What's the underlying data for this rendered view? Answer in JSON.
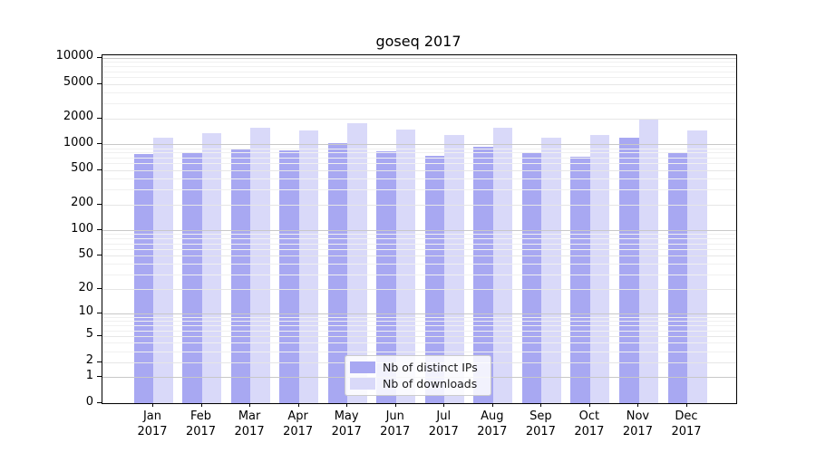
{
  "title": "goseq 2017",
  "chart_data": {
    "type": "bar",
    "title": "goseq 2017",
    "categories": [
      "Jan",
      "Feb",
      "Mar",
      "Apr",
      "May",
      "Jun",
      "Jul",
      "Aug",
      "Sep",
      "Oct",
      "Nov",
      "Dec"
    ],
    "x_sublabel": "2017",
    "series": [
      {
        "name": "Nb of distinct IPs",
        "color": "#a8a8f2",
        "values": [
          765,
          815,
          875,
          855,
          1020,
          825,
          735,
          935,
          785,
          720,
          1180,
          795
        ]
      },
      {
        "name": "Nb of downloads",
        "color": "#d9d9f9",
        "values": [
          1190,
          1360,
          1540,
          1460,
          1770,
          1470,
          1270,
          1550,
          1200,
          1270,
          1980,
          1430
        ]
      }
    ],
    "yticks": [
      0,
      1,
      2,
      5,
      10,
      20,
      50,
      100,
      200,
      500,
      1000,
      2000,
      5000,
      10000
    ],
    "scale": "log10(1+x)",
    "ylim": [
      0,
      10000
    ],
    "grid": true,
    "legend_position": "bottom-center",
    "colors": {
      "grid_decade": "#c8c8c8",
      "grid_labeled": "#e6e6e6",
      "grid_minor": "#f0f0f0",
      "axis": "#000000"
    }
  },
  "legend": {
    "items": [
      {
        "label": "Nb of distinct IPs",
        "color": "#a8a8f2"
      },
      {
        "label": "Nb of downloads",
        "color": "#d9d9f9"
      }
    ]
  }
}
